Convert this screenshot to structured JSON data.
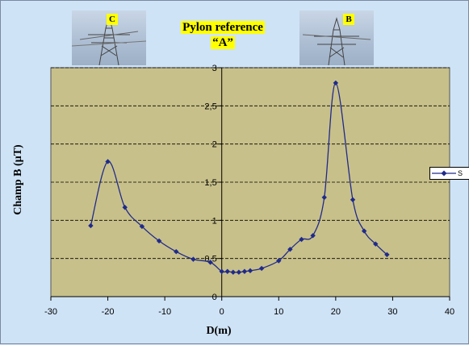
{
  "pylons": [
    {
      "id": "pylon-c",
      "tag": "C"
    },
    {
      "id": "pylon-b",
      "tag": "B"
    }
  ],
  "title_line1": "Pylon reference",
  "title_line2": "“A”",
  "colors": {
    "plot_area": "#c8c08a",
    "series": "#1f2a8c",
    "background": "#cfe3f6",
    "title_highlight": "#ffff00"
  },
  "chart_data": {
    "type": "line",
    "xlabel": "D(m)",
    "ylabel": "Champ B (µT)",
    "xlim": [
      -30,
      40
    ],
    "ylim": [
      0,
      3
    ],
    "xticks": [
      -30,
      -20,
      -10,
      0,
      10,
      20,
      30,
      40
    ],
    "yticks": [
      0,
      0.5,
      1,
      1.5,
      2,
      2.5,
      3
    ],
    "ytick_labels": [
      "0",
      "0,5",
      "1",
      "1,5",
      "2",
      "2,5",
      "3"
    ],
    "grid": "horizontal dashed",
    "legend": "right",
    "series": [
      {
        "name": "S",
        "x": [
          -23,
          -20,
          -17,
          -14,
          -11,
          -8,
          -5,
          -2,
          0,
          1,
          2,
          3,
          4,
          5,
          7,
          10,
          12,
          14,
          16,
          18,
          20,
          23,
          25,
          27,
          29
        ],
        "y": [
          0.93,
          1.77,
          1.17,
          0.92,
          0.73,
          0.59,
          0.49,
          0.45,
          0.33,
          0.33,
          0.32,
          0.32,
          0.33,
          0.34,
          0.37,
          0.47,
          0.62,
          0.75,
          0.8,
          1.3,
          2.8,
          1.27,
          0.86,
          0.69,
          0.55
        ]
      }
    ]
  }
}
